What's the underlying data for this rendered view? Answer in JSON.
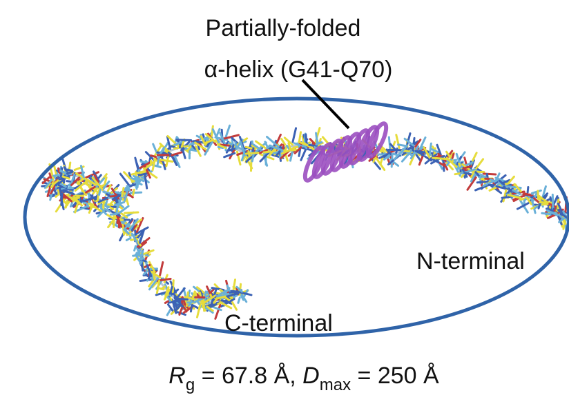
{
  "labels": {
    "helix_title": "Partially-folded",
    "helix_range": "α-helix (G41-Q70)",
    "n_terminal": "N-terminal",
    "c_terminal": "C-terminal"
  },
  "caption": [
    "R",
    "g",
    " = 67.8 Å, ",
    "D",
    "max",
    " = 250 Å"
  ]
}
